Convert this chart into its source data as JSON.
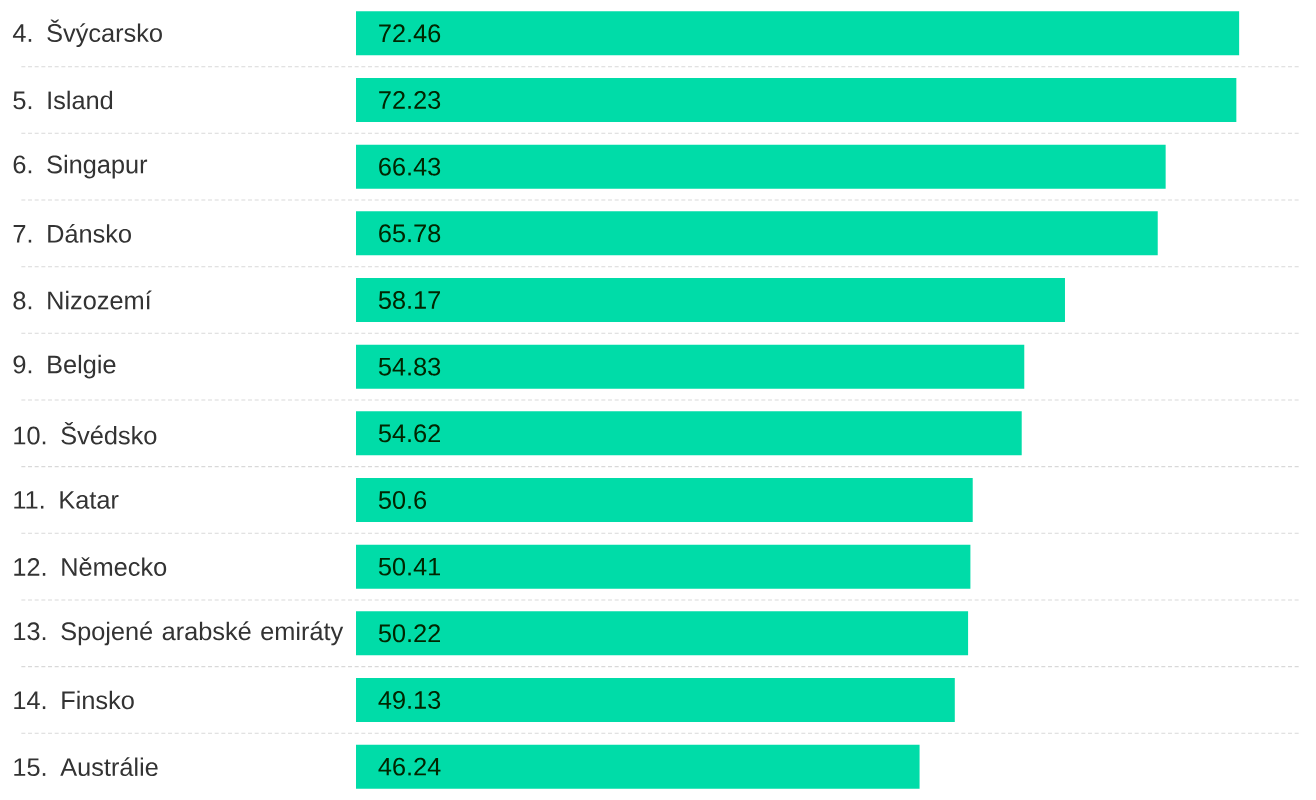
{
  "chart_data": {
    "type": "bar",
    "orientation": "horizontal",
    "categories": [
      "4. Švýcarsko",
      "5. Island",
      "6. Singapur",
      "7. Dánsko",
      "8. Nizozemí",
      "9. Belgie",
      "10. Švédsko",
      "11. Katar",
      "12. Německo",
      "13. Spojené arabské emiráty",
      "14. Finsko",
      "15. Austrálie"
    ],
    "values": [
      72.46,
      72.23,
      66.43,
      65.78,
      58.17,
      54.83,
      54.62,
      50.6,
      50.41,
      50.22,
      49.13,
      46.24
    ],
    "color": "#00dca8",
    "data_labels": true,
    "grid": "y"
  }
}
